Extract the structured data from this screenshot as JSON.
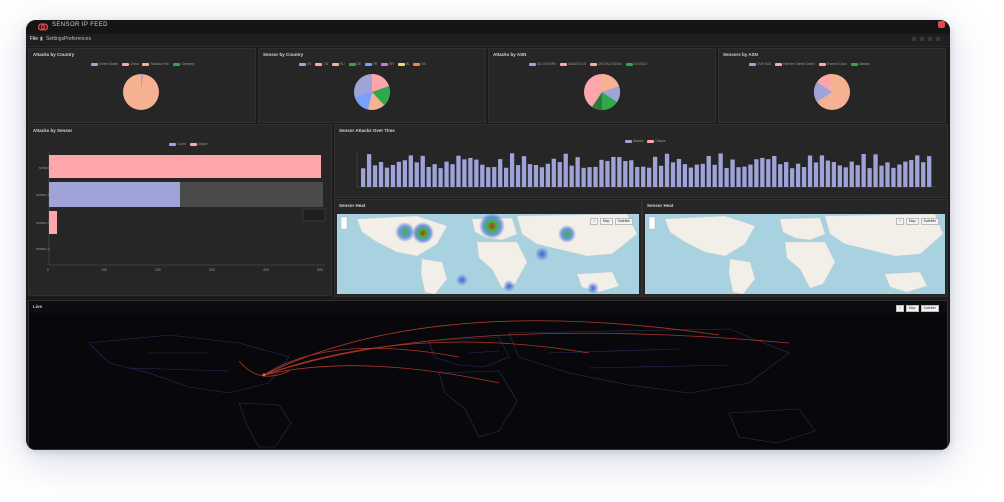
{
  "app": {
    "title": "SENSOR IP FEED"
  },
  "toolbar": {
    "file": "File",
    "settings": "Settings",
    "preferences": "Preferences"
  },
  "panels": {
    "pie1": {
      "title": "Attacks by Country",
      "legend": [
        "United States",
        "China",
        "Russian Fed.",
        "Germany"
      ]
    },
    "pie2": {
      "title": "Sensor by Country",
      "legend": [
        "US",
        "CN",
        "RU",
        "DE",
        "FR",
        "BR",
        "IN",
        "GB"
      ]
    },
    "pie3": {
      "title": "Attacks by ASN",
      "legend": [
        "AS-CHOOPA",
        "AMAZON-02",
        "DIGITALOCEAN",
        "GOOGLE"
      ]
    },
    "pie4": {
      "title": "Sensors by ASN",
      "legend": [
        "OVH SAS",
        "Hetzner Online GmbH",
        "Tencent Cloud",
        "Alibaba"
      ]
    },
    "bar": {
      "title": "Attacks by Sensor",
      "legend": [
        "Count",
        "Unique"
      ],
      "categories": [
        "sensor-1",
        "sensor-2",
        "sensor-3",
        "sensor-4"
      ],
      "xticks": [
        "0",
        "100",
        "200",
        "300",
        "400",
        "500"
      ]
    },
    "timeline": {
      "title": "Sensor Attacks Over Time",
      "legend": [
        "Attacks",
        "Unique"
      ]
    },
    "map1": {
      "title": "Sensor Heat",
      "zoom": "Map",
      "style": "Satellite"
    },
    "map2": {
      "title": "Sensor Heat",
      "zoom": "Map",
      "style": "Satellite"
    },
    "map3": {
      "title": "Live",
      "zoom": "Map",
      "style": "Satellite"
    }
  },
  "colors": {
    "pink": "#ffa6ab",
    "blue": "#9fa3d8",
    "orange": "#f6b192",
    "green": "#2eaa4a",
    "accent": "#e24b4b"
  }
}
